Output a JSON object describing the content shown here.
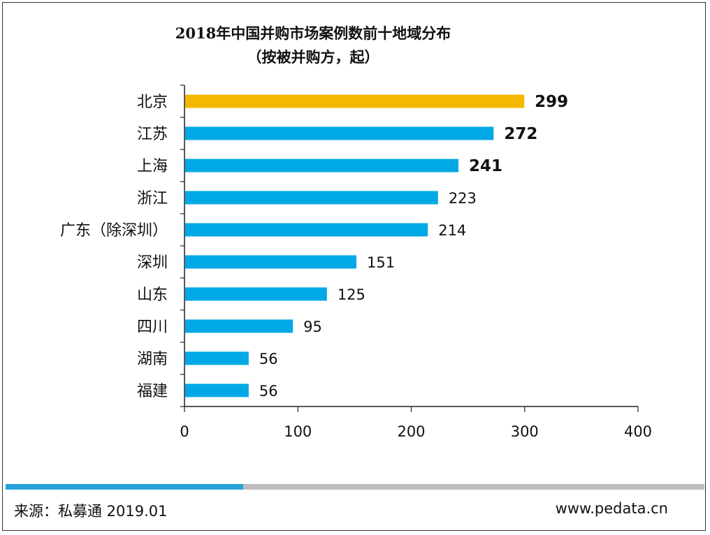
{
  "chart_data": {
    "type": "bar",
    "orientation": "horizontal",
    "title": "2018年中国并购市场案例数前十地域分布",
    "subtitle": "（按被并购方，起）",
    "categories": [
      "北京",
      "江苏",
      "上海",
      "浙江",
      "广东（除深圳）",
      "深圳",
      "山东",
      "四川",
      "湖南",
      "福建"
    ],
    "values": [
      299,
      272,
      241,
      223,
      214,
      151,
      125,
      95,
      56,
      56
    ],
    "bold_labels": [
      true,
      true,
      true,
      false,
      false,
      false,
      false,
      false,
      false,
      false
    ],
    "highlight_index": 0,
    "xlim": [
      0,
      400
    ],
    "xticks": [
      0,
      100,
      200,
      300,
      400
    ],
    "colors": {
      "highlight": "#F5B800",
      "bar": "#00A9E6"
    },
    "grid": false,
    "legend": "none"
  },
  "footer": {
    "source": "来源：私募通 2019.01",
    "website": "www.pedata.cn"
  },
  "progress": {
    "fraction": 0.34,
    "fill_color": "#23A3D6",
    "track_color": "#BDBDC1"
  }
}
